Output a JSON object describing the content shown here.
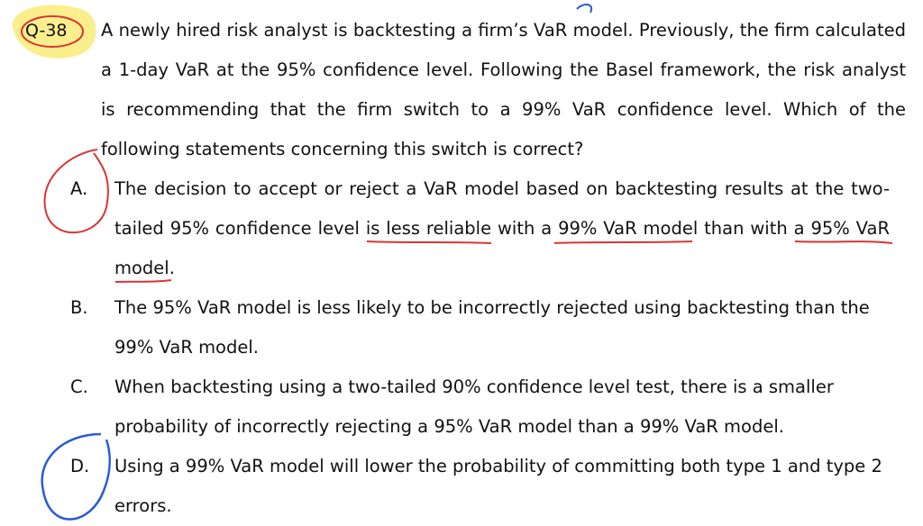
{
  "question": {
    "number": "Q-38",
    "lines": [
      "A newly hired risk analyst is backtesting a firm’s VaR model. Previously, the firm calculated",
      "a 1-day VaR at the 95% confidence level. Following the Basel framework, the risk analyst",
      "is recommending that the firm switch to a 99% VaR confidence level. Which of the",
      "following statements concerning this switch is correct?"
    ]
  },
  "options": [
    {
      "label": "A.",
      "lines": [
        "The decision to accept or reject a VaR model based on backtesting results at the two-",
        "tailed 95% confidence level is less reliable with a 99% VaR model than with a 95% VaR",
        "model."
      ]
    },
    {
      "label": "B.",
      "lines": [
        "The 95% VaR model is less likely to be incorrectly rejected using backtesting than the",
        "99% VaR model."
      ]
    },
    {
      "label": "C.",
      "lines": [
        "When backtesting using a two-tailed 90% confidence level test, there is a smaller",
        "probability of incorrectly rejecting a 95% VaR model than a 99% VaR model."
      ]
    },
    {
      "label": "D.",
      "lines": [
        "Using a 99% VaR model will lower the probability of committing both type 1 and type 2",
        "errors."
      ]
    }
  ]
}
